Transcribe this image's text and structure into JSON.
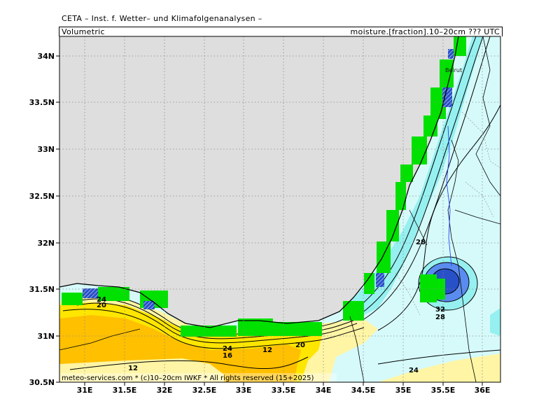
{
  "header": {
    "title": "CETA – Inst. f. Wetter– und Klimafolgenanalysen –",
    "left_label": "Volumetric",
    "right_label": "moisture.[fraction].10–20cm ??? UTC"
  },
  "axes": {
    "lat_ticks": [
      "34N",
      "33.5N",
      "33N",
      "32.5N",
      "32N",
      "31.5N",
      "31N",
      "30.5N"
    ],
    "lon_ticks": [
      "31E",
      "31.5E",
      "32E",
      "32.5E",
      "33E",
      "33.5E",
      "34E",
      "34.5E",
      "35E",
      "35.5E",
      "36E"
    ]
  },
  "contour_labels": [
    "24",
    "20",
    "24",
    "16",
    "12",
    "20",
    "12",
    "28",
    "32",
    "28",
    "24"
  ],
  "city_label": "Beirut",
  "footer": "meteo-services.com * (c)10–20cm IWKF * All rights reserved (15+2025)",
  "colors": {
    "sea": "#dedede",
    "land_green": "#00e100",
    "level_yellow_light": "#fff5a5",
    "level_yellow": "#ffe600",
    "level_orange": "#ffc000",
    "level_cyan_light": "#d6fafa",
    "level_cyan": "#96f0f0",
    "level_blue": "#5a8cf0",
    "level_dark_blue": "#2850c8"
  }
}
